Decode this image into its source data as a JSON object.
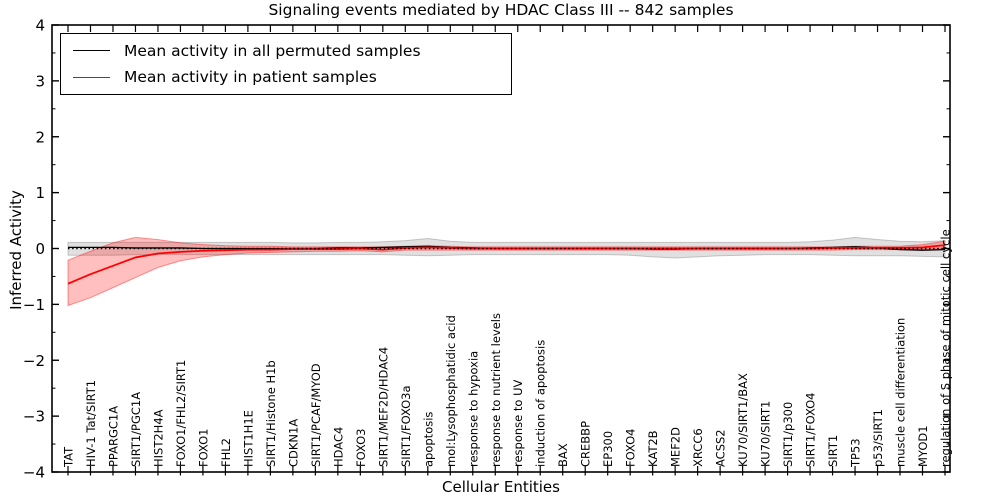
{
  "title": "Signaling events mediated by HDAC Class III -- 842 samples",
  "legend": {
    "items": [
      {
        "label": "Mean activity in all permuted samples",
        "color": "#000000"
      },
      {
        "label": "Mean activity in patient samples",
        "color": "#ff0000"
      }
    ]
  },
  "chart_data": {
    "type": "line",
    "title": "Signaling events mediated by HDAC Class III -- 842 samples",
    "xlabel": "Cellular Entities",
    "ylabel": "Inferred Activity",
    "ylim": [
      -4,
      4
    ],
    "y_ticks": [
      -4,
      -3,
      -2,
      -1,
      0,
      1,
      2,
      3,
      4
    ],
    "y_minor_step": 0.5,
    "grid": false,
    "legend_position": "upper left",
    "zero_line": {
      "style": "dotted",
      "color": "#000000",
      "y": 0
    },
    "categories": [
      "TAT",
      "HIV-1 Tat/SIRT1",
      "PPARGC1A",
      "SIRT1/PGC1A",
      "HIST2H4A",
      "FOXO1/FHL2/SIRT1",
      "FOXO1",
      "FHL2",
      "HIST1H1E",
      "SIRT1/Histone H1b",
      "CDKN1A",
      "SIRT1/PCAF/MYOD",
      "HDAC4",
      "FOXO3",
      "SIRT1/MEF2D/HDAC4",
      "SIRT1/FOXO3a",
      "apoptosis",
      "mol:Lysophosphatidic acid",
      "response to hypoxia",
      "response to nutrient levels",
      "response to UV",
      "induction of apoptosis",
      "BAX",
      "CREBBP",
      "EP300",
      "FOXO4",
      "KAT2B",
      "MEF2D",
      "XRCC6",
      "ACSS2",
      "KU70/SIRT1/BAX",
      "KU70/SIRT1",
      "SIRT1/p300",
      "SIRT1/FOXO4",
      "SIRT1",
      "TP53",
      "p53/SIRT1",
      "muscle cell differentiation",
      "MYOD1",
      "regulation of S phase of mitotic cell cycle"
    ],
    "series": [
      {
        "name": "Mean activity in all permuted samples",
        "color": "#000000",
        "values": [
          0.02,
          0.02,
          0.02,
          0.01,
          0.01,
          0.01,
          0.0,
          0.0,
          0.0,
          0.0,
          0.0,
          0.0,
          0.01,
          0.01,
          0.02,
          0.03,
          0.04,
          0.02,
          0.01,
          0.0,
          0.0,
          0.0,
          0.0,
          0.0,
          0.0,
          0.0,
          -0.01,
          -0.01,
          0.0,
          0.0,
          0.0,
          0.0,
          0.0,
          0.01,
          0.02,
          0.03,
          0.01,
          -0.02,
          -0.03,
          -0.02
        ]
      },
      {
        "name": "Mean activity in patient samples",
        "color": "#ff0000",
        "values": [
          -0.63,
          -0.46,
          -0.31,
          -0.16,
          -0.09,
          -0.06,
          -0.04,
          -0.03,
          -0.02,
          -0.02,
          -0.01,
          -0.01,
          -0.01,
          0.0,
          -0.02,
          0.01,
          0.02,
          0.01,
          0.0,
          0.0,
          0.0,
          0.0,
          0.0,
          0.0,
          0.0,
          0.0,
          0.0,
          0.0,
          0.0,
          0.0,
          0.0,
          0.0,
          0.0,
          0.0,
          0.01,
          0.01,
          0.01,
          0.01,
          0.02,
          0.06
        ]
      }
    ],
    "bands": [
      {
        "name": "permuted-samples-band",
        "color": "#000000",
        "opacity": 0.12,
        "upper": [
          0.11,
          0.11,
          0.11,
          0.11,
          0.11,
          0.11,
          0.11,
          0.11,
          0.11,
          0.11,
          0.1,
          0.1,
          0.11,
          0.11,
          0.12,
          0.14,
          0.18,
          0.13,
          0.11,
          0.11,
          0.11,
          0.11,
          0.11,
          0.11,
          0.11,
          0.11,
          0.11,
          0.11,
          0.11,
          0.11,
          0.11,
          0.11,
          0.11,
          0.12,
          0.15,
          0.2,
          0.16,
          0.13,
          0.12,
          0.14
        ],
        "lower": [
          -0.12,
          -0.12,
          -0.12,
          -0.11,
          -0.11,
          -0.11,
          -0.11,
          -0.11,
          -0.11,
          -0.11,
          -0.11,
          -0.11,
          -0.11,
          -0.11,
          -0.11,
          -0.12,
          -0.13,
          -0.12,
          -0.11,
          -0.11,
          -0.11,
          -0.11,
          -0.11,
          -0.11,
          -0.11,
          -0.12,
          -0.15,
          -0.17,
          -0.15,
          -0.13,
          -0.12,
          -0.11,
          -0.11,
          -0.11,
          -0.12,
          -0.13,
          -0.13,
          -0.13,
          -0.14,
          -0.15
        ]
      },
      {
        "name": "patient-samples-band",
        "color": "#ff0000",
        "opacity": 0.25,
        "upper": [
          -0.21,
          -0.05,
          0.1,
          0.2,
          0.16,
          0.1,
          0.07,
          0.05,
          0.04,
          0.04,
          0.03,
          0.03,
          0.03,
          0.03,
          0.03,
          0.04,
          0.05,
          0.04,
          0.03,
          0.03,
          0.03,
          0.03,
          0.03,
          0.03,
          0.03,
          0.03,
          0.03,
          0.03,
          0.03,
          0.03,
          0.03,
          0.03,
          0.03,
          0.03,
          0.03,
          0.04,
          0.04,
          0.04,
          0.07,
          0.13
        ],
        "lower": [
          -1.02,
          -0.88,
          -0.7,
          -0.52,
          -0.34,
          -0.22,
          -0.15,
          -0.11,
          -0.08,
          -0.07,
          -0.06,
          -0.05,
          -0.05,
          -0.04,
          -0.06,
          -0.03,
          -0.03,
          -0.03,
          -0.03,
          -0.03,
          -0.03,
          -0.03,
          -0.03,
          -0.03,
          -0.03,
          -0.03,
          -0.03,
          -0.03,
          -0.03,
          -0.03,
          -0.03,
          -0.03,
          -0.03,
          -0.03,
          -0.03,
          -0.02,
          -0.02,
          -0.02,
          -0.01,
          0.0
        ]
      }
    ]
  }
}
